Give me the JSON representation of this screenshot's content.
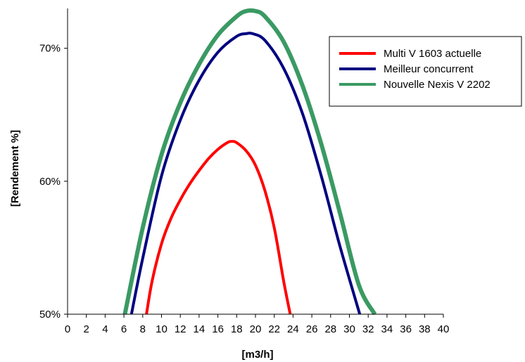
{
  "chart_data": {
    "type": "line",
    "title": "",
    "xlabel": "[m3/h]",
    "ylabel": "[Rendement %]",
    "xlim": [
      0,
      40
    ],
    "ylim": [
      50,
      73
    ],
    "x_ticks": [
      "0",
      "2",
      "4",
      "6",
      "8",
      "10",
      "12",
      "14",
      "16",
      "18",
      "20",
      "22",
      "24",
      "26",
      "28",
      "30",
      "32",
      "34",
      "36",
      "38",
      "40"
    ],
    "x_tick_values": [
      0,
      2,
      4,
      6,
      8,
      10,
      12,
      14,
      16,
      18,
      20,
      22,
      24,
      26,
      28,
      30,
      32,
      34,
      36,
      38,
      40
    ],
    "y_ticks": [
      "50%",
      "60%",
      "70%"
    ],
    "y_tick_values": [
      50,
      60,
      70
    ],
    "grid": false,
    "legend_position": "top-right",
    "series": [
      {
        "name": "Multi V 1603 actuelle",
        "color": "#ff0000",
        "x": [
          8.4,
          9,
          10,
          11,
          12,
          13,
          14,
          15,
          16,
          17,
          17.5,
          18,
          19,
          20,
          21,
          22,
          23,
          23.7
        ],
        "y": [
          50,
          52.5,
          55.3,
          57.2,
          58.6,
          59.8,
          60.8,
          61.7,
          62.4,
          62.9,
          63.0,
          62.9,
          62.3,
          61.2,
          59.3,
          56.5,
          52.5,
          50
        ]
      },
      {
        "name": "Meilleur concurrent",
        "color": "#000080",
        "x": [
          6.8,
          8,
          10,
          12,
          14,
          16,
          18,
          19,
          19.7,
          21,
          23,
          25,
          27,
          29,
          31.1
        ],
        "y": [
          50,
          54.2,
          60.4,
          64.6,
          67.6,
          69.7,
          70.9,
          71.1,
          71.1,
          70.6,
          68.5,
          65.1,
          60.4,
          55.1,
          50
        ]
      },
      {
        "name": "Nouvelle Nexis V 2202",
        "color": "#3a9a63",
        "x": [
          6.1,
          8,
          10,
          12,
          14,
          16,
          18,
          19,
          20,
          21,
          23,
          25,
          27,
          29,
          31,
          32.7
        ],
        "y": [
          50,
          56.5,
          62.0,
          65.9,
          68.8,
          71.0,
          72.4,
          72.8,
          72.8,
          72.4,
          70.5,
          67.2,
          62.8,
          57.6,
          52.2,
          50
        ]
      }
    ]
  }
}
